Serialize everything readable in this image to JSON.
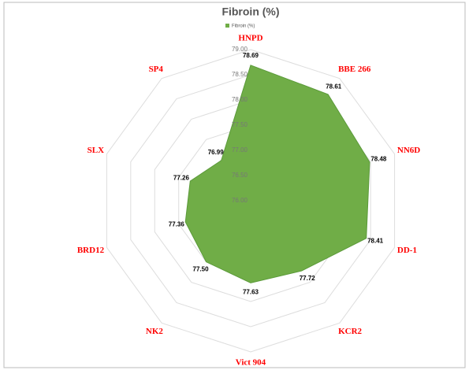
{
  "chart_data": {
    "type": "radar",
    "title": "Fibroin (%)",
    "categories": [
      "HNPD",
      "BBE 266",
      "NN6D",
      "DD-1",
      "KCR2",
      "Vict 904",
      "NK2",
      "BRD12",
      "SLX",
      "SP4"
    ],
    "series": [
      {
        "name": "Fibroin (%)",
        "color": "#70ad47",
        "values": [
          78.69,
          78.61,
          78.48,
          78.41,
          77.72,
          77.63,
          77.5,
          77.36,
          77.26,
          76.99
        ],
        "value_labels": [
          "78.69",
          "78.61",
          "78.48",
          "78.41",
          "77.72",
          "77.63",
          "77.50",
          "77.36",
          "77.26",
          "76.99"
        ]
      }
    ],
    "ylim": [
      76,
      79
    ],
    "yticks": [
      {
        "value": 76,
        "label": "76.00"
      },
      {
        "value": 76.5,
        "label": "76.50"
      },
      {
        "value": 77,
        "label": "77.00"
      },
      {
        "value": 77.5,
        "label": "77.50"
      },
      {
        "value": 78,
        "label": "78.00"
      },
      {
        "value": 78.5,
        "label": "78.50"
      },
      {
        "value": 79,
        "label": "79.00"
      }
    ],
    "grid": true,
    "legend": "top"
  }
}
